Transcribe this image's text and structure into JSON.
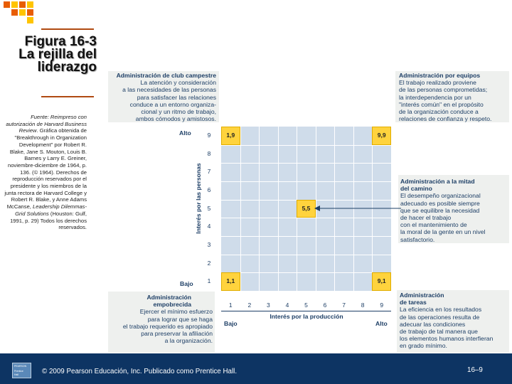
{
  "slide": {
    "title_line1": "Figura 16-3",
    "title_line2": "La rejilla del",
    "title_line3": "liderazgo",
    "source_intro": "Fuente: Reimpreso con autorización de",
    "source_journal": "Harvard Business Review",
    "source_part2": ". Gráfica obtenida de \"Breakthrough in Organization Development\" por Robert R. Blake, Jane S. Mouton, Louis B. Barnes y Larry E. Greiner, noviembre-diciembre de 1964, p. 136. (© 1964). Derechos de reproducción reservados por el presidente y los miembros de la junta rectora de Harvard College y Robert R. Blake, y Anne Adams McCanse,",
    "source_book": "Leadership Dilemmas-Grid Solutions",
    "source_part3": "(Houston: Gulf, 1991, p. 29) Todos los derechos reservados."
  },
  "styles": {
    "country_club": {
      "title": "Administración de club campestre",
      "lines": [
        "La atención y consideración",
        "a las necesidades de las personas",
        "para satisfacer las relaciones",
        "conduce a un entorno organiza-",
        "cional y un ritmo de trabajo,",
        "ambos cómodos y amistosos."
      ]
    },
    "team": {
      "title": "Administración por equipos",
      "lines": [
        "El trabajo realizado proviene",
        "de las personas comprometidas;",
        "la interdependencia por un",
        "\"interés común\" en el propósito",
        "de la organización conduce a",
        "relaciones de confianza y respeto."
      ]
    },
    "middle": {
      "title_line1": "Administración a la mitad",
      "title_line2": "del camino",
      "lines": [
        "El desempeño organizacional",
        "adecuado es posible siempre",
        "que se equilibre la necesidad",
        "de hacer el trabajo",
        "con el mantenimiento de",
        "la moral de la gente en un nivel",
        "satisfactorio."
      ]
    },
    "impoverished": {
      "title_line1": "Administración",
      "title_line2": "empobrecida",
      "lines": [
        "Ejercer el mínimo esfuerzo",
        "para lograr que se haga",
        "el trabajo requerido es apropiado",
        "para preservar la afiliación",
        "a la organización."
      ]
    },
    "task": {
      "title_line1": "Administración",
      "title_line2": "de tareas",
      "lines": [
        "La eficiencia en los resultados",
        "de las operaciones resulta de",
        "adecuar las condiciones",
        "de trabajo de tal manera que",
        "los elementos humanos interfieran",
        "en grado mínimo."
      ]
    }
  },
  "grid": {
    "y_axis_label": "Interés por las personas",
    "x_axis_label": "Interés por la producción",
    "y_high": "Alto",
    "y_low": "Bajo",
    "x_low": "Bajo",
    "x_high": "Alto",
    "y_ticks": [
      "9",
      "8",
      "7",
      "6",
      "5",
      "4",
      "3",
      "2",
      "1"
    ],
    "x_ticks": [
      "1",
      "2",
      "3",
      "4",
      "5",
      "6",
      "7",
      "8",
      "9"
    ],
    "cells": [
      {
        "label": "1,9",
        "x": 1,
        "y": 9
      },
      {
        "label": "9,9",
        "x": 9,
        "y": 9
      },
      {
        "label": "5,5",
        "x": 5,
        "y": 5
      },
      {
        "label": "1,1",
        "x": 1,
        "y": 1
      },
      {
        "label": "9,1",
        "x": 9,
        "y": 1
      }
    ],
    "colors": {
      "grid": "#cfdcea",
      "highlight": "#ffd33d",
      "text": "#1e3f66"
    }
  },
  "footer": {
    "copyright": "© 2009 Pearson Educación, Inc. Publicado como Prentice Hall.",
    "page": "16–9",
    "logo_line1": "PEARSON",
    "logo_line2": "Prentice",
    "logo_line3": "Hall"
  }
}
